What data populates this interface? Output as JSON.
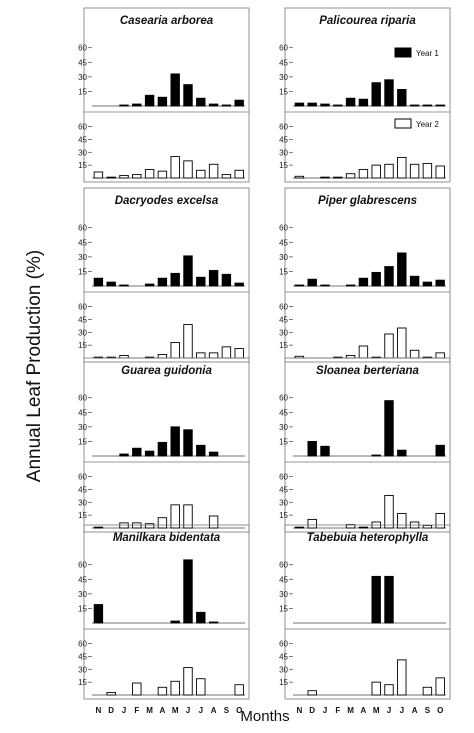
{
  "figure": {
    "ylabel": "Annual Leaf Production (%)",
    "xlabel": "Months",
    "legend": [
      "Year 1",
      "Year 2"
    ],
    "colors": {
      "year1": "#000000",
      "year2": "#ffffff",
      "axis": "#444444",
      "frame": "#777777"
    }
  },
  "chart_data": {
    "type": "bar",
    "months": [
      "N",
      "D",
      "J",
      "F",
      "M",
      "A",
      "M",
      "J",
      "J",
      "A",
      "S",
      "O"
    ],
    "yticks": [
      15,
      30,
      45,
      60
    ],
    "ylim": [
      0,
      70
    ],
    "species": [
      {
        "title": "Casearia arborea",
        "year1": [
          0,
          0,
          1,
          2,
          11,
          9,
          33,
          22,
          8,
          2,
          1,
          6
        ],
        "year2": [
          7,
          1,
          3,
          4,
          10,
          8,
          25,
          20,
          9,
          16,
          4,
          9
        ]
      },
      {
        "title": "Palicourea riparia",
        "year1": [
          3,
          3,
          2,
          1,
          8,
          7,
          24,
          27,
          17,
          1,
          1,
          1
        ],
        "year2": [
          2,
          0,
          1,
          1,
          5,
          10,
          15,
          16,
          24,
          16,
          17,
          14
        ]
      },
      {
        "title": "Dacryodes excelsa",
        "year1": [
          8,
          4,
          1,
          0,
          2,
          8,
          13,
          31,
          9,
          16,
          12,
          3
        ],
        "year2": [
          1,
          1,
          3,
          0,
          1,
          4,
          18,
          39,
          6,
          6,
          13,
          11
        ]
      },
      {
        "title": "Piper glabrescens",
        "year1": [
          1,
          7,
          1,
          0,
          1,
          8,
          14,
          20,
          34,
          10,
          4,
          6
        ],
        "year2": [
          2,
          0,
          0,
          1,
          3,
          14,
          1,
          28,
          35,
          9,
          1,
          6
        ]
      },
      {
        "title": "Guarea guidonia",
        "year1": [
          0,
          0,
          2,
          8,
          5,
          14,
          30,
          27,
          11,
          4,
          0,
          0
        ],
        "year2": [
          1,
          0,
          6,
          6,
          5,
          12,
          27,
          27,
          0,
          14,
          0,
          0
        ]
      },
      {
        "title": "Sloanea berteriana",
        "year1": [
          0,
          15,
          10,
          0,
          0,
          0,
          1,
          57,
          6,
          0,
          0,
          11
        ],
        "year2": [
          1,
          10,
          0,
          0,
          4,
          1,
          7,
          38,
          17,
          7,
          3,
          17
        ]
      },
      {
        "title": "Manilkara bidentata",
        "year1": [
          19,
          0,
          0,
          0,
          0,
          0,
          2,
          65,
          11,
          1,
          0,
          0
        ],
        "year2": [
          0,
          3,
          0,
          14,
          0,
          9,
          16,
          32,
          19,
          0,
          0,
          12
        ]
      },
      {
        "title": "Tabebuia heterophylla",
        "year1": [
          0,
          0,
          0,
          0,
          0,
          0,
          48,
          48,
          0,
          0,
          0,
          0
        ],
        "year2": [
          0,
          5,
          0,
          0,
          0,
          0,
          15,
          12,
          41,
          0,
          9,
          20
        ]
      }
    ]
  }
}
